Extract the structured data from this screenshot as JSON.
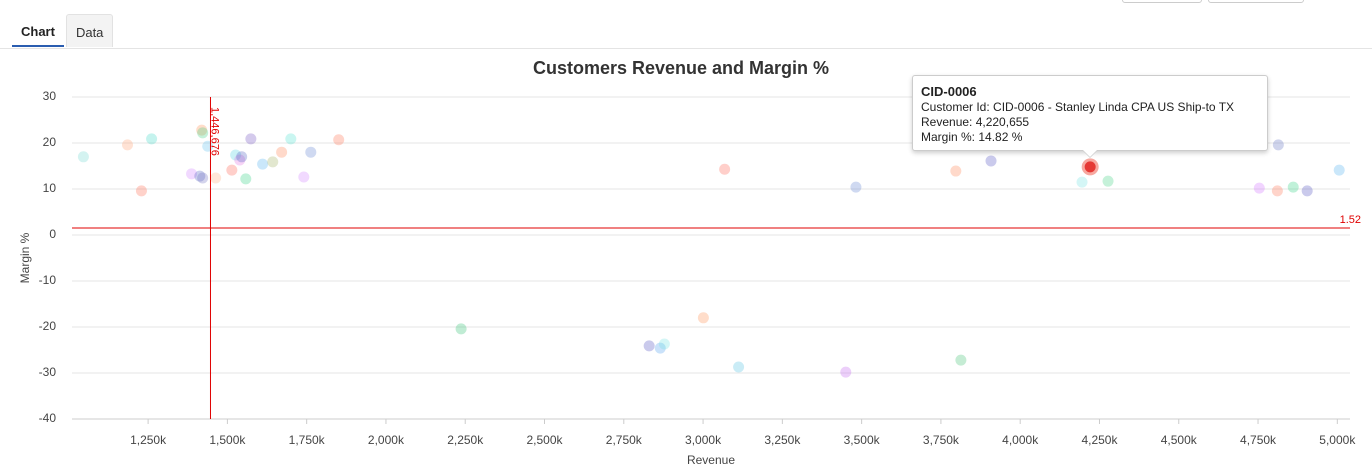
{
  "tabs": [
    "Chart",
    "Data"
  ],
  "chart_data": {
    "type": "scatter",
    "title": "Customers Revenue and Margin %",
    "x_label": "Revenue",
    "y_label": "Margin %",
    "xlim": [
      1010000,
      5040000
    ],
    "xticks": [
      {
        "value": 1250000,
        "label": "1,250k"
      },
      {
        "value": 1500000,
        "label": "1,500k"
      },
      {
        "value": 1750000,
        "label": "1,750k"
      },
      {
        "value": 2000000,
        "label": "2,000k"
      },
      {
        "value": 2250000,
        "label": "2,250k"
      },
      {
        "value": 2500000,
        "label": "2,500k"
      },
      {
        "value": 2750000,
        "label": "2,750k"
      },
      {
        "value": 3000000,
        "label": "3,000k"
      },
      {
        "value": 3250000,
        "label": "3,250k"
      },
      {
        "value": 3500000,
        "label": "3,500k"
      },
      {
        "value": 3750000,
        "label": "3,750k"
      },
      {
        "value": 4000000,
        "label": "4,000k"
      },
      {
        "value": 4250000,
        "label": "4,250k"
      },
      {
        "value": 4500000,
        "label": "4,500k"
      },
      {
        "value": 4750000,
        "label": "4,750k"
      },
      {
        "value": 5000000,
        "label": "5,000k"
      }
    ],
    "ylim": [
      -40,
      30
    ],
    "yticks": [
      -40,
      -30,
      -20,
      -10,
      0,
      10,
      20,
      30
    ],
    "grid": true,
    "point_opacity": 0.3,
    "x": [
      1046000,
      1185000,
      1229000,
      1261000,
      1387000,
      1413000,
      1422000,
      1419000,
      1422000,
      1438000,
      1463000,
      1514000,
      1526000,
      1539000,
      1545000,
      1558000,
      1574000,
      1611000,
      1643000,
      1671000,
      1700000,
      1741000,
      1763000,
      1851000,
      2237000,
      2830000,
      2865000,
      2878000,
      3001000,
      3068000,
      3112000,
      3450000,
      3482000,
      3797000,
      3813000,
      3908000,
      4195000,
      4277000,
      4754000,
      4811000,
      4814000,
      4861000,
      4905000,
      5006000
    ],
    "values": [
      17,
      19.6,
      9.6,
      20.9,
      13.3,
      12.8,
      12.4,
      22.8,
      22.2,
      19.3,
      12.4,
      14.1,
      17.4,
      16.3,
      17,
      12.2,
      20.9,
      15.4,
      15.9,
      18,
      20.9,
      12.6,
      18,
      20.7,
      -20.4,
      -24.1,
      -24.6,
      -23.7,
      -18,
      14.3,
      -28.7,
      -29.8,
      10.4,
      13.9,
      -27.2,
      16.1,
      11.5,
      11.7,
      10.2,
      9.6,
      19.6,
      10.4,
      9.6,
      14.1
    ],
    "colors": [
      "#6fd8d0",
      "#ffa070",
      "#ff6a50",
      "#40d8c8",
      "#d080ff",
      "#5060c0",
      "#7070c0",
      "#ff9050",
      "#40d080",
      "#60c0f0",
      "#ffb080",
      "#ff6050",
      "#50d0e0",
      "#e070e0",
      "#5060c0",
      "#30d080",
      "#7050c0",
      "#50b0f0",
      "#a0b060",
      "#ff8050",
      "#50e0d0",
      "#d080ff",
      "#6080d0",
      "#ff7050",
      "#30c070",
      "#5050c0",
      "#50a0f0",
      "#70e0e0",
      "#ff9050",
      "#ff6050",
      "#50c0e0",
      "#c060f0",
      "#6080d0",
      "#ff8050",
      "#40c070",
      "#5050c0",
      "#70e0e0",
      "#40d080",
      "#d070ff",
      "#ff7050",
      "#6070c0",
      "#30d080",
      "#5050c0",
      "#50b0f0"
    ],
    "reference_x": {
      "value": 1446676,
      "label": "1,446,676"
    },
    "reference_y": 1.52,
    "reference_color": "#e00000",
    "highlight": {
      "x": 4220655,
      "y": 14.82,
      "color": "#e53935"
    },
    "tooltip": {
      "title": "CID-0006",
      "lines": [
        "Customer Id: CID-0006 - Stanley Linda CPA US Ship-to TX",
        "Revenue: 4,220,655",
        "Margin %: 14.82 %"
      ]
    }
  }
}
